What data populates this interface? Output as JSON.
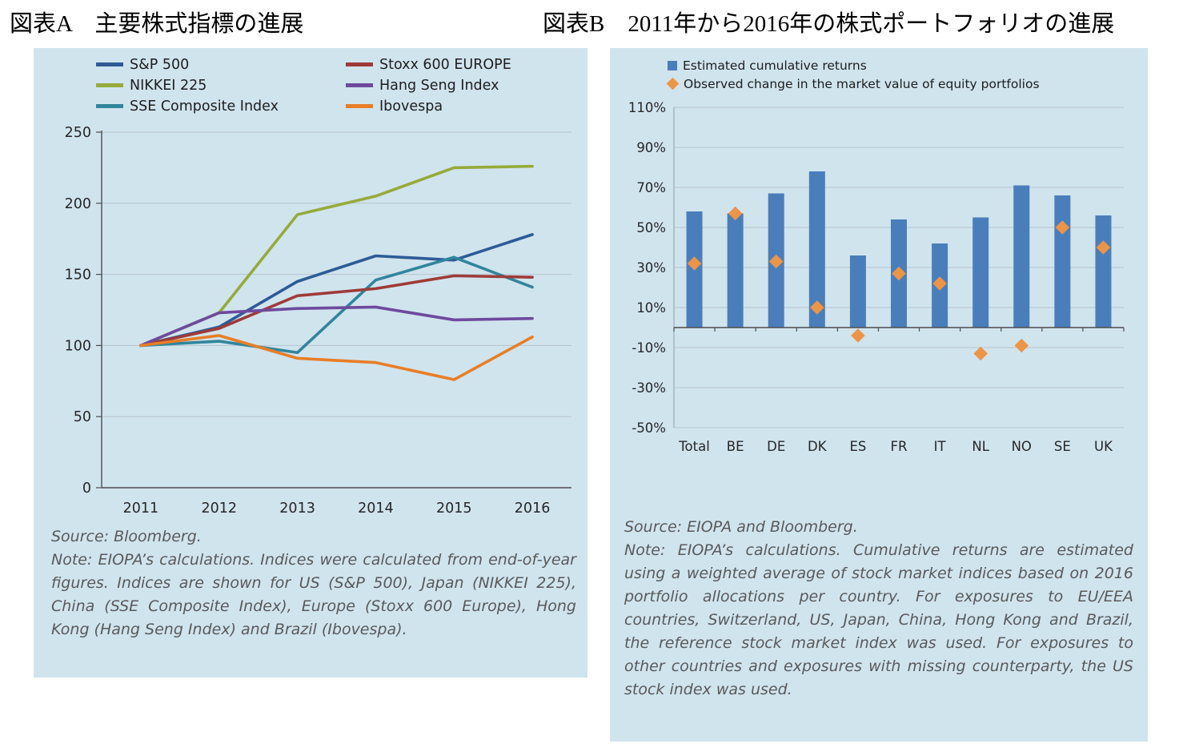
{
  "page": {
    "title_a": "図表A　主要株式指標の進展",
    "title_b": "図表B　2011年から2016年の株式ポートフォリオの進展"
  },
  "chart_data": [
    {
      "id": "major-equity-indices",
      "type": "line",
      "title": "",
      "xlabel": "",
      "ylabel": "",
      "legend_position": "top",
      "grid": true,
      "x": [
        "2011",
        "2012",
        "2013",
        "2014",
        "2015",
        "2016"
      ],
      "ylim": [
        0,
        250
      ],
      "yticks": [
        250,
        200,
        150,
        100,
        50,
        0
      ],
      "series": [
        {
          "name": "S&P 500",
          "color": "#2e5b97",
          "values": [
            100,
            113,
            145,
            163,
            160,
            178
          ]
        },
        {
          "name": "NIKKEI 225",
          "color": "#95ab3a",
          "values": [
            100,
            123,
            192,
            205,
            225,
            226
          ]
        },
        {
          "name": "SSE Composite Index",
          "color": "#31859c",
          "values": [
            100,
            103,
            95,
            146,
            162,
            141
          ]
        },
        {
          "name": "Stoxx 600 EUROPE",
          "color": "#9e3b38",
          "values": [
            100,
            112,
            135,
            140,
            149,
            148
          ]
        },
        {
          "name": "Hang Seng Index",
          "color": "#6e4a9d",
          "values": [
            100,
            123,
            126,
            127,
            118,
            119
          ]
        },
        {
          "name": "Ibovespa",
          "color": "#e87e27",
          "values": [
            100,
            107,
            91,
            88,
            76,
            106
          ]
        }
      ],
      "source": "Source: Bloomberg.",
      "note": "Note: EIOPA’s calculations. Indices were calculated from end-of-year figures. Indices are shown for US (S&P 500), Japan (NIKKEI 225), China (SSE Composite Index), Europe (Stoxx 600 Europe), Hong Kong (Hang Seng Index) and Brazil (Ibovespa)."
    },
    {
      "id": "equity-portfolios-2011-2016",
      "type": "bar",
      "title": "",
      "xlabel": "",
      "ylabel": "",
      "legend_position": "top",
      "grid": true,
      "categories": [
        "Total",
        "BE",
        "DE",
        "DK",
        "ES",
        "FR",
        "IT",
        "NL",
        "NO",
        "SE",
        "UK"
      ],
      "ylim": [
        -50,
        110
      ],
      "yticks": [
        110,
        90,
        70,
        50,
        30,
        10,
        -10,
        -30,
        -50
      ],
      "tick_suffix": "%",
      "series": [
        {
          "name": "Estimated cumulative returns",
          "marker": "bar",
          "color": "#4a7ebb",
          "values": [
            58,
            57,
            67,
            78,
            36,
            54,
            42,
            55,
            71,
            66,
            56
          ]
        },
        {
          "name": "Observed change in the market value of equity portfolios",
          "marker": "diamond",
          "color": "#ed9445",
          "values": [
            32,
            57,
            33,
            10,
            -4,
            27,
            22,
            -13,
            -9,
            50,
            40
          ]
        }
      ],
      "source": "Source: EIOPA and Bloomberg.",
      "note": "Note: EIOPA’s calculations. Cumulative returns are estimated using a weighted average of stock market indices based on 2016 portfolio allocations per country. For exposures to EU/EEA countries, Switzerland, US, Japan, China, Hong Kong and Brazil, the reference stock market index was used. For exposures to other countries and exposures with missing counterparty, the US stock index was used."
    }
  ]
}
